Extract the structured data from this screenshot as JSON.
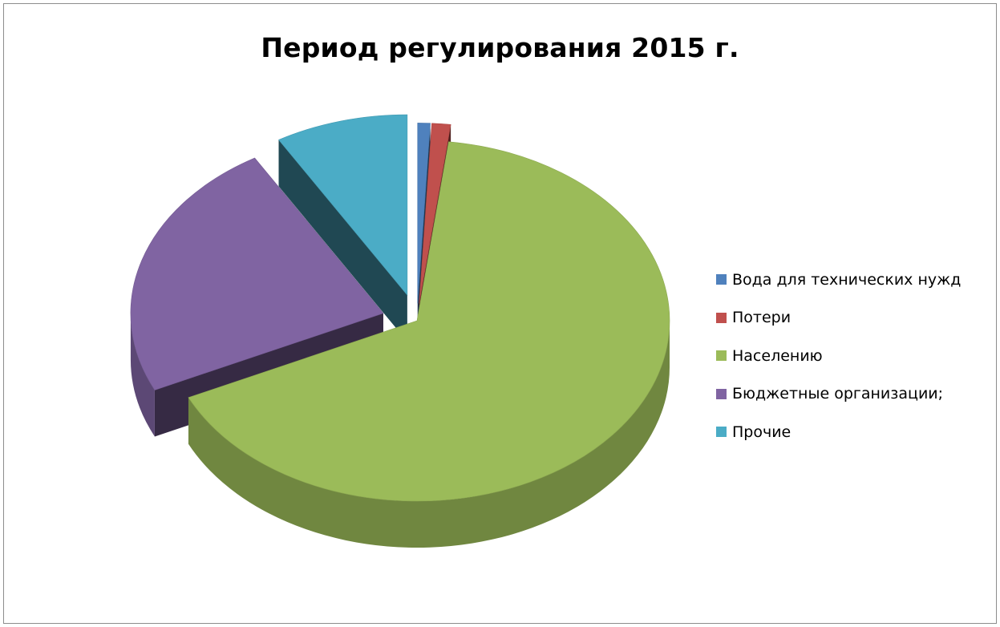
{
  "chart_data": {
    "type": "pie",
    "title": "Период регулирования 2015 г.",
    "style": "3d-exploded",
    "legend_position": "right",
    "categories": [
      "Вода для технических нужд",
      "Потери",
      "Населению",
      "Бюджетные организации;",
      "Прочие"
    ],
    "values": [
      0.8,
      1.2,
      66.0,
      23.5,
      8.5
    ],
    "colors": [
      "#4f81bd",
      "#c0504d",
      "#9bbb59",
      "#8064a2",
      "#4bacc6"
    ]
  }
}
